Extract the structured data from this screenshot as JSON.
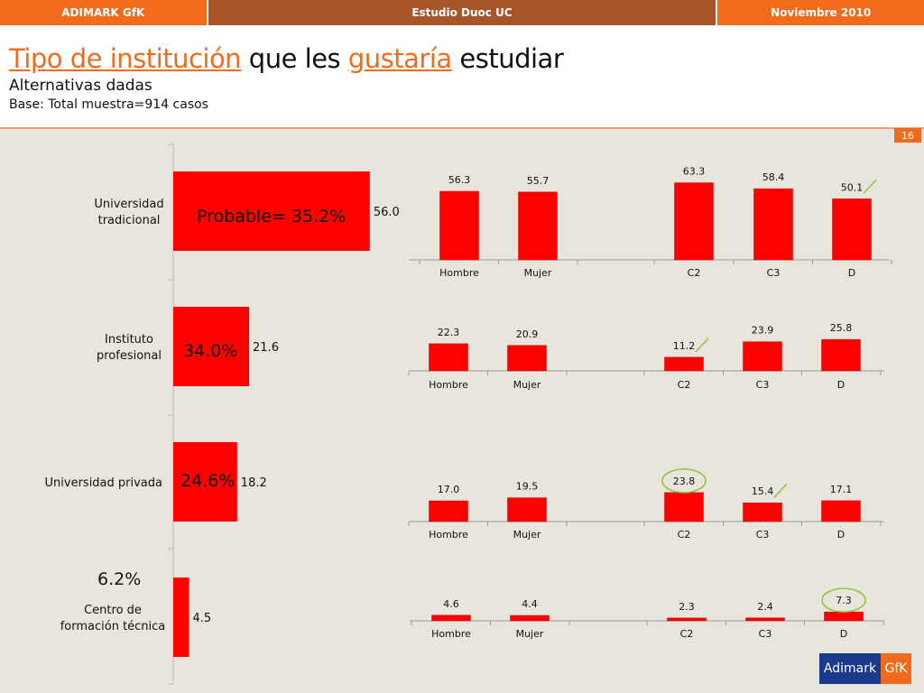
{
  "topbar": {
    "left": "ADIMARK GfK",
    "center": "Estudio Duoc UC",
    "right": "Noviembre 2010"
  },
  "header": {
    "title_part1": "Tipo de institución",
    "title_part2": " que les ",
    "title_part3": "gustaría",
    "title_part4": " estudiar",
    "subtitle": "Alternativas dadas",
    "base": "Base: Total muestra=914 casos"
  },
  "page_number": "16",
  "logo": {
    "left": "Adimark",
    "right": "GfK"
  },
  "colors": {
    "orange": "#f26a1b",
    "bar_red": "#ff0000",
    "brown": "#a8552c",
    "navy": "#1a3a8c",
    "mark_green": "#8fc43a"
  },
  "chart_data": [
    {
      "type": "bar",
      "orientation": "horizontal",
      "categories": [
        "Universidad tradicional",
        "Instituto profesional",
        "Universidad privada",
        "Centro de formación técnica"
      ],
      "values": [
        56.0,
        21.6,
        18.2,
        4.5
      ],
      "annotations": [
        "Probable= 35.2%",
        "34.0%",
        "24.6%",
        "6.2%"
      ]
    },
    {
      "type": "bar",
      "categories": [
        "Hombre",
        "Mujer",
        "C2",
        "C3",
        "D"
      ],
      "values": [
        56.3,
        55.7,
        63.3,
        58.4,
        50.1
      ],
      "marks": {
        "D": "check"
      }
    },
    {
      "type": "bar",
      "categories": [
        "Hombre",
        "Mujer",
        "C2",
        "C3",
        "D"
      ],
      "values": [
        22.3,
        20.9,
        11.2,
        23.9,
        25.8
      ],
      "marks": {
        "C2": "check"
      }
    },
    {
      "type": "bar",
      "categories": [
        "Hombre",
        "Mujer",
        "C2",
        "C3",
        "D"
      ],
      "values": [
        17.0,
        19.5,
        23.8,
        15.4,
        17.1
      ],
      "marks": {
        "C2": "circle",
        "C3": "check"
      }
    },
    {
      "type": "bar",
      "categories": [
        "Hombre",
        "Mujer",
        "C2",
        "C3",
        "D"
      ],
      "values": [
        4.6,
        4.4,
        2.3,
        2.4,
        7.3
      ],
      "marks": {
        "D": "circle"
      }
    }
  ]
}
